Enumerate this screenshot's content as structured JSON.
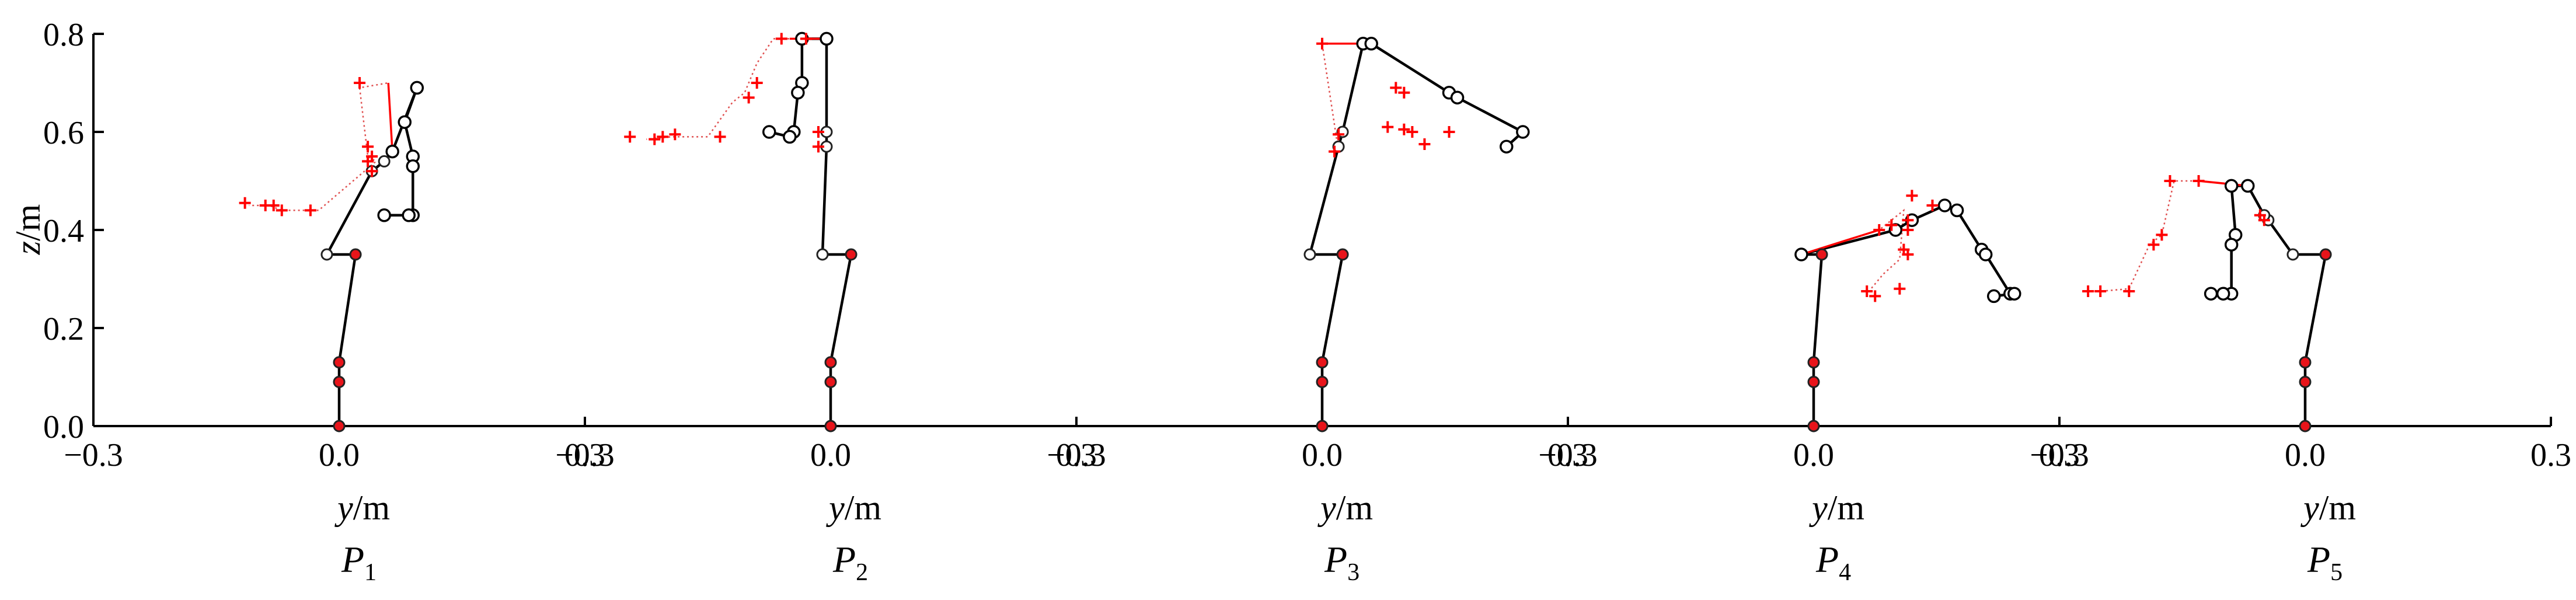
{
  "chart_data": {
    "type": "scatter",
    "ylabel_var": "z",
    "ylabel_unit": "/m",
    "xlabel_var": "y",
    "xlabel_unit": "/m",
    "ylim": [
      0,
      0.8
    ],
    "yticks": [
      "0.0",
      "0.2",
      "0.4",
      "0.6",
      "0.8"
    ],
    "yticks_values": [
      0,
      0.2,
      0.4,
      0.6,
      0.8
    ],
    "xticks_values": [
      -0.3,
      0.0,
      0.3
    ],
    "xticks_labels": [
      "−0.3",
      "0.0",
      "0.3"
    ],
    "colors": {
      "model": "#000000",
      "joint_fill": "#e8141a",
      "marker": "#ff0000",
      "connector": "#e05050"
    },
    "panels": [
      {
        "label": "P",
        "sub": "1",
        "xlim": [
          -0.3,
          0.3
        ],
        "skeleton_lower": [
          [
            0.0,
            0.0
          ],
          [
            0.0,
            0.09
          ],
          [
            0.0,
            0.13
          ],
          [
            0.02,
            0.35
          ],
          [
            -0.015,
            0.35
          ],
          [
            0.04,
            0.52
          ],
          [
            0.055,
            0.54
          ],
          [
            0.065,
            0.56
          ]
        ],
        "arm_model": [
          [
            0.065,
            0.56
          ],
          [
            0.095,
            0.69
          ],
          [
            0.08,
            0.62
          ],
          [
            0.09,
            0.55
          ],
          [
            0.09,
            0.53
          ],
          [
            0.09,
            0.43
          ],
          [
            0.085,
            0.43
          ],
          [
            0.055,
            0.43
          ]
        ],
        "arm_measured": [
          [
            0.065,
            0.56
          ],
          [
            0.06,
            0.7
          ],
          [
            0.025,
            0.69
          ],
          [
            0.035,
            0.55
          ],
          [
            0.045,
            0.54
          ],
          [
            -0.025,
            0.44
          ],
          [
            -0.07,
            0.44
          ],
          [
            -0.085,
            0.45
          ],
          [
            -0.11,
            0.45
          ]
        ],
        "measured_marks": [
          [
            0.025,
            0.7
          ],
          [
            0.04,
            0.55
          ],
          [
            0.035,
            0.57
          ],
          [
            0.04,
            0.52
          ],
          [
            0.035,
            0.54
          ],
          [
            -0.035,
            0.44
          ],
          [
            -0.07,
            0.44
          ],
          [
            -0.08,
            0.45
          ],
          [
            -0.09,
            0.45
          ],
          [
            -0.115,
            0.455
          ]
        ]
      },
      {
        "label": "P",
        "sub": "2",
        "xlim": [
          -0.3,
          0.3
        ],
        "skeleton_lower": [
          [
            0.0,
            0.0
          ],
          [
            0.0,
            0.09
          ],
          [
            0.0,
            0.13
          ],
          [
            0.025,
            0.35
          ],
          [
            -0.01,
            0.35
          ],
          [
            -0.005,
            0.57
          ],
          [
            -0.005,
            0.6
          ],
          [
            -0.005,
            0.79
          ]
        ],
        "arm_model": [
          [
            -0.005,
            0.79
          ],
          [
            -0.035,
            0.79
          ],
          [
            -0.035,
            0.7
          ],
          [
            -0.04,
            0.68
          ],
          [
            -0.045,
            0.6
          ],
          [
            -0.05,
            0.59
          ],
          [
            -0.075,
            0.6
          ]
        ],
        "arm_measured": [
          [
            -0.005,
            0.79
          ],
          [
            -0.05,
            0.79
          ],
          [
            -0.07,
            0.79
          ],
          [
            -0.09,
            0.74
          ],
          [
            -0.105,
            0.68
          ],
          [
            -0.12,
            0.66
          ],
          [
            -0.15,
            0.59
          ],
          [
            -0.195,
            0.59
          ],
          [
            -0.225,
            0.585
          ]
        ],
        "measured_marks": [
          [
            -0.06,
            0.79
          ],
          [
            -0.03,
            0.79
          ],
          [
            -0.09,
            0.7
          ],
          [
            -0.1,
            0.67
          ],
          [
            -0.135,
            0.59
          ],
          [
            -0.19,
            0.595
          ],
          [
            -0.205,
            0.59
          ],
          [
            -0.215,
            0.585
          ],
          [
            -0.245,
            0.59
          ],
          [
            -0.015,
            0.6
          ],
          [
            -0.015,
            0.57
          ]
        ]
      },
      {
        "label": "P",
        "sub": "3",
        "xlim": [
          -0.3,
          0.3
        ],
        "skeleton_lower": [
          [
            0.0,
            0.0
          ],
          [
            0.0,
            0.09
          ],
          [
            0.0,
            0.13
          ],
          [
            0.025,
            0.35
          ],
          [
            -0.015,
            0.35
          ],
          [
            0.02,
            0.57
          ],
          [
            0.025,
            0.6
          ],
          [
            0.05,
            0.78
          ]
        ],
        "arm_model": [
          [
            0.05,
            0.78
          ],
          [
            0.06,
            0.78
          ],
          [
            0.155,
            0.68
          ],
          [
            0.165,
            0.67
          ],
          [
            0.245,
            0.6
          ],
          [
            0.225,
            0.57
          ]
        ],
        "arm_measured": [
          [
            0.05,
            0.78
          ],
          [
            0.0,
            0.78
          ],
          [
            0.02,
            0.56
          ],
          [
            0.02,
            0.6
          ]
        ],
        "measured_marks": [
          [
            0.0,
            0.78
          ],
          [
            0.09,
            0.69
          ],
          [
            0.1,
            0.68
          ],
          [
            0.08,
            0.61
          ],
          [
            0.1,
            0.605
          ],
          [
            0.11,
            0.6
          ],
          [
            0.155,
            0.6
          ],
          [
            0.125,
            0.575
          ],
          [
            0.015,
            0.56
          ],
          [
            0.02,
            0.595
          ]
        ]
      },
      {
        "label": "P",
        "sub": "4",
        "xlim": [
          -0.3,
          0.3
        ],
        "skeleton_lower": [
          [
            0.0,
            0.0
          ],
          [
            0.0,
            0.09
          ],
          [
            0.0,
            0.13
          ],
          [
            0.01,
            0.35
          ],
          [
            -0.015,
            0.35
          ]
        ],
        "arm_model": [
          [
            -0.015,
            0.35
          ],
          [
            0.1,
            0.4
          ],
          [
            0.12,
            0.42
          ],
          [
            0.16,
            0.45
          ],
          [
            0.175,
            0.44
          ],
          [
            0.205,
            0.36
          ],
          [
            0.21,
            0.35
          ],
          [
            0.24,
            0.27
          ],
          [
            0.245,
            0.27
          ],
          [
            0.22,
            0.265
          ]
        ],
        "arm_measured": [
          [
            -0.015,
            0.35
          ],
          [
            0.08,
            0.4
          ],
          [
            0.11,
            0.44
          ],
          [
            0.105,
            0.34
          ],
          [
            0.085,
            0.31
          ],
          [
            0.07,
            0.28
          ]
        ],
        "measured_marks": [
          [
            0.08,
            0.4
          ],
          [
            0.095,
            0.41
          ],
          [
            0.12,
            0.47
          ],
          [
            0.115,
            0.42
          ],
          [
            0.115,
            0.4
          ],
          [
            0.11,
            0.36
          ],
          [
            0.115,
            0.35
          ],
          [
            0.145,
            0.45
          ],
          [
            0.105,
            0.28
          ],
          [
            0.065,
            0.275
          ],
          [
            0.075,
            0.265
          ]
        ]
      },
      {
        "label": "P",
        "sub": "5",
        "xlim": [
          -0.3,
          0.3
        ],
        "skeleton_lower": [
          [
            0.0,
            0.0
          ],
          [
            0.0,
            0.09
          ],
          [
            0.0,
            0.13
          ],
          [
            0.025,
            0.35
          ],
          [
            -0.015,
            0.35
          ],
          [
            -0.045,
            0.42
          ],
          [
            -0.05,
            0.43
          ],
          [
            -0.07,
            0.49
          ]
        ],
        "arm_model": [
          [
            -0.07,
            0.49
          ],
          [
            -0.09,
            0.49
          ],
          [
            -0.085,
            0.39
          ],
          [
            -0.09,
            0.37
          ],
          [
            -0.09,
            0.27
          ],
          [
            -0.1,
            0.27
          ],
          [
            -0.115,
            0.27
          ]
        ],
        "arm_measured": [
          [
            -0.07,
            0.49
          ],
          [
            -0.13,
            0.5
          ],
          [
            -0.16,
            0.5
          ],
          [
            -0.175,
            0.39
          ],
          [
            -0.19,
            0.37
          ],
          [
            -0.215,
            0.28
          ],
          [
            -0.25,
            0.275
          ],
          [
            -0.265,
            0.275
          ]
        ],
        "measured_marks": [
          [
            -0.13,
            0.5
          ],
          [
            -0.165,
            0.5
          ],
          [
            -0.055,
            0.43
          ],
          [
            -0.05,
            0.42
          ],
          [
            -0.175,
            0.39
          ],
          [
            -0.185,
            0.37
          ],
          [
            -0.215,
            0.275
          ],
          [
            -0.25,
            0.275
          ],
          [
            -0.265,
            0.275
          ]
        ]
      }
    ]
  }
}
